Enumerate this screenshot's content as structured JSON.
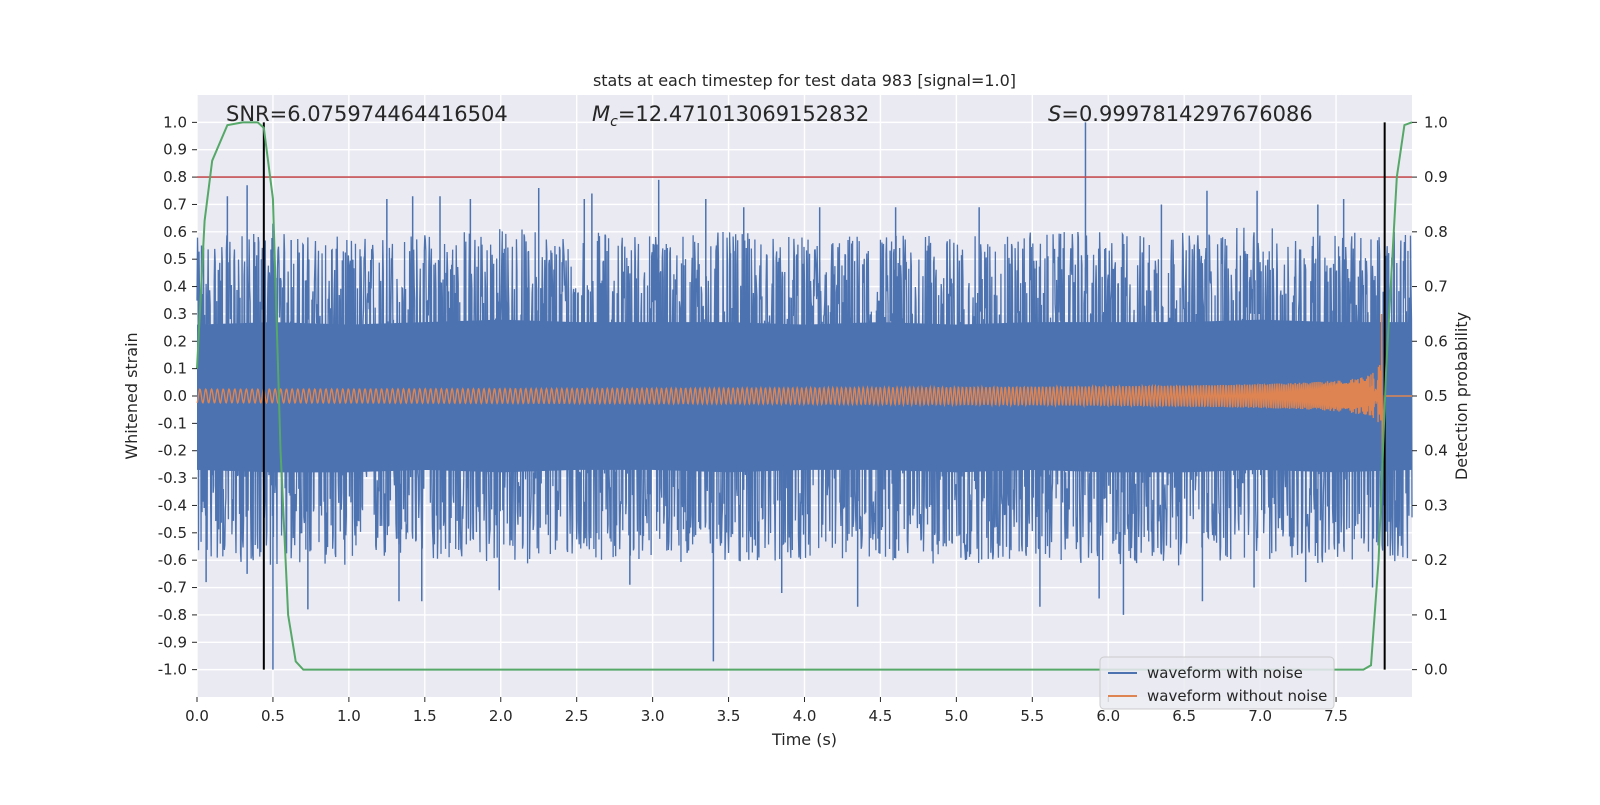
{
  "chart_data": {
    "type": "line",
    "title": "stats at each timestep for test data 983 [signal=1.0]",
    "xlabel": "Time (s)",
    "ylabel": "Whitened strain",
    "y2label": "Detection probability",
    "xlim": [
      0.0,
      8.0
    ],
    "ylim": [
      -1.1,
      1.1
    ],
    "y2lim": [
      -0.05,
      1.05
    ],
    "x_ticks": [
      "0.0",
      "0.5",
      "1.0",
      "1.5",
      "2.0",
      "2.5",
      "3.0",
      "3.5",
      "4.0",
      "4.5",
      "5.0",
      "5.5",
      "6.0",
      "6.5",
      "7.0",
      "7.5"
    ],
    "y_ticks": [
      "1.0",
      "0.9",
      "0.8",
      "0.7",
      "0.6",
      "0.5",
      "0.4",
      "0.3",
      "0.2",
      "0.1",
      "0.0",
      "-0.1",
      "-0.2",
      "-0.3",
      "-0.4",
      "-0.5",
      "-0.6",
      "-0.7",
      "-0.8",
      "-0.9",
      "-1.0"
    ],
    "y2_ticks": [
      "1.0",
      "0.9",
      "0.8",
      "0.7",
      "0.6",
      "0.5",
      "0.4",
      "0.3",
      "0.2",
      "0.1",
      "0.0"
    ],
    "grid": true,
    "legend_position": "lower-right",
    "annotations": {
      "snr": "SNR=6.075974464416504",
      "mc_symbol": "M",
      "mc_sub": "c",
      "mc_value": "=12.471013069152832",
      "s_symbol": "S",
      "s_value": "=0.9997814297676086"
    },
    "threshold_y": 0.8,
    "vlines_x": [
      0.44,
      7.82
    ],
    "series": [
      {
        "name": "waveform with noise",
        "color": "#4c72b0",
        "envelope_x": [
          0.0,
          0.5,
          1.0,
          1.5,
          2.0,
          2.5,
          3.0,
          3.5,
          4.0,
          4.5,
          5.0,
          5.5,
          6.0,
          6.5,
          7.0,
          7.5,
          8.0
        ],
        "envelope_upper": [
          0.58,
          0.6,
          0.58,
          0.6,
          0.62,
          0.6,
          0.6,
          0.6,
          0.58,
          0.6,
          0.58,
          0.6,
          0.6,
          0.6,
          0.62,
          0.6,
          0.6
        ],
        "envelope_lower": [
          -0.6,
          -0.62,
          -0.62,
          -0.6,
          -0.62,
          -0.6,
          -0.6,
          -0.62,
          -0.6,
          -0.6,
          -0.62,
          -0.6,
          -0.62,
          -0.62,
          -0.6,
          -0.62,
          -0.6
        ],
        "spikes": [
          [
            0.03,
            0.55
          ],
          [
            0.2,
            0.73
          ],
          [
            0.33,
            0.77
          ],
          [
            0.5,
            0.63
          ],
          [
            0.62,
            0.57
          ],
          [
            1.25,
            0.72
          ],
          [
            1.42,
            0.73
          ],
          [
            1.6,
            0.73
          ],
          [
            1.8,
            0.72
          ],
          [
            2.25,
            0.76
          ],
          [
            2.55,
            0.72
          ],
          [
            2.6,
            0.74
          ],
          [
            3.04,
            0.79
          ],
          [
            3.35,
            0.72
          ],
          [
            3.6,
            0.69
          ],
          [
            4.1,
            0.69
          ],
          [
            4.6,
            0.69
          ],
          [
            5.15,
            0.69
          ],
          [
            5.85,
            1.0
          ],
          [
            6.35,
            0.7
          ],
          [
            6.65,
            0.75
          ],
          [
            6.98,
            0.75
          ],
          [
            7.38,
            0.7
          ],
          [
            7.55,
            0.72
          ],
          [
            0.06,
            -0.68
          ],
          [
            0.33,
            -0.65
          ],
          [
            0.5,
            -1.0
          ],
          [
            0.73,
            -0.78
          ],
          [
            1.33,
            -0.75
          ],
          [
            1.48,
            -0.75
          ],
          [
            1.99,
            -0.71
          ],
          [
            2.85,
            -0.69
          ],
          [
            3.4,
            -0.97
          ],
          [
            3.85,
            -0.72
          ],
          [
            4.35,
            -0.77
          ],
          [
            5.55,
            -0.77
          ],
          [
            5.94,
            -0.74
          ],
          [
            6.1,
            -0.8
          ],
          [
            6.62,
            -0.75
          ],
          [
            6.96,
            -0.7
          ],
          [
            7.3,
            -0.68
          ],
          [
            7.74,
            -0.7
          ]
        ]
      },
      {
        "name": "waveform without noise",
        "color": "#dd8452",
        "merger_time": 7.8,
        "peak_amplitude": 0.3,
        "min_amplitude": -0.24
      },
      {
        "name": "detection probability",
        "axis": "right",
        "color": "#55a868",
        "x": [
          0.0,
          0.05,
          0.1,
          0.2,
          0.3,
          0.4,
          0.44,
          0.5,
          0.55,
          0.6,
          0.65,
          0.7,
          1.0,
          7.5,
          7.6,
          7.68,
          7.73,
          7.78,
          7.83,
          7.9,
          7.95,
          8.0
        ],
        "y": [
          0.55,
          0.82,
          0.93,
          0.995,
          1.0,
          1.0,
          0.99,
          0.86,
          0.4,
          0.1,
          0.015,
          0.0,
          0.0,
          0.0,
          0.0,
          0.0,
          0.008,
          0.2,
          0.55,
          0.9,
          0.995,
          1.0
        ]
      }
    ],
    "threshold_color": "#c44e52",
    "vline_color": "#000000",
    "plot_bg": "#eaeaf2"
  }
}
